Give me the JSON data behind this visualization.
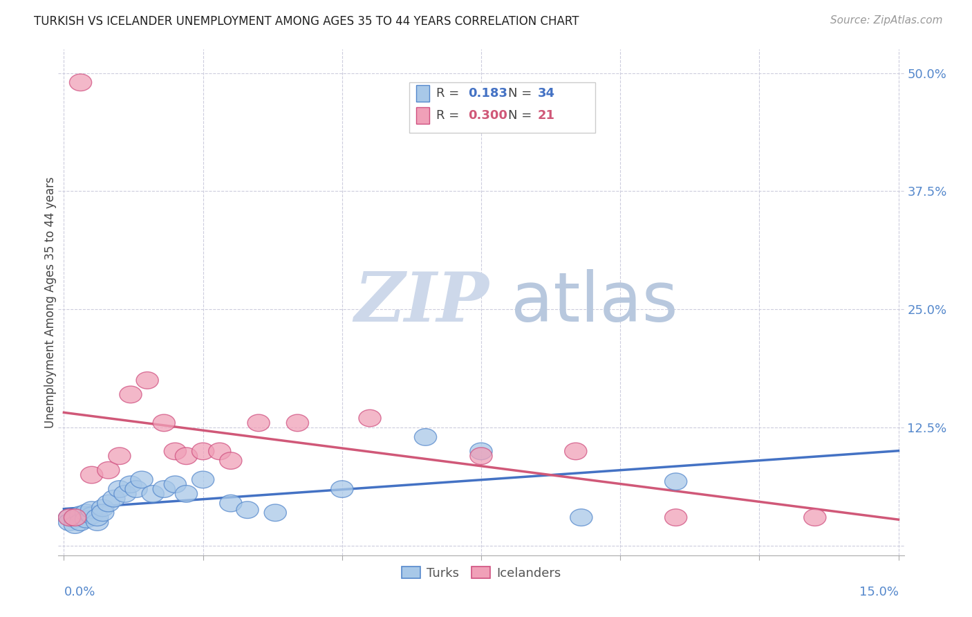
{
  "title": "TURKISH VS ICELANDER UNEMPLOYMENT AMONG AGES 35 TO 44 YEARS CORRELATION CHART",
  "source": "Source: ZipAtlas.com",
  "ylabel": "Unemployment Among Ages 35 to 44 years",
  "xlim": [
    0.0,
    0.15
  ],
  "ylim": [
    0.0,
    0.5
  ],
  "ytick_vals": [
    0.0,
    0.125,
    0.25,
    0.375,
    0.5
  ],
  "ytick_labels": [
    "",
    "12.5%",
    "25.0%",
    "37.5%",
    "50.0%"
  ],
  "xtick_vals": [
    0.0,
    0.025,
    0.05,
    0.075,
    0.1,
    0.125,
    0.15
  ],
  "turks_R": "0.183",
  "turks_N": "34",
  "icelanders_R": "0.300",
  "icelanders_N": "21",
  "turks_color": "#a8c8e8",
  "icelanders_color": "#f0a0b8",
  "turks_edge_color": "#5588cc",
  "icelanders_edge_color": "#d05080",
  "turks_line_color": "#4472c4",
  "icelanders_line_color": "#d05878",
  "watermark_zip_color": "#c8d8ee",
  "watermark_atlas_color": "#b8c8de",
  "turks_x": [
    0.001,
    0.001,
    0.002,
    0.002,
    0.003,
    0.003,
    0.004,
    0.004,
    0.005,
    0.005,
    0.006,
    0.006,
    0.007,
    0.007,
    0.008,
    0.009,
    0.01,
    0.011,
    0.012,
    0.013,
    0.014,
    0.016,
    0.018,
    0.02,
    0.022,
    0.025,
    0.03,
    0.033,
    0.038,
    0.05,
    0.065,
    0.075,
    0.093,
    0.11
  ],
  "turks_y": [
    0.03,
    0.025,
    0.028,
    0.022,
    0.033,
    0.025,
    0.035,
    0.028,
    0.032,
    0.038,
    0.025,
    0.03,
    0.04,
    0.035,
    0.045,
    0.05,
    0.06,
    0.055,
    0.065,
    0.06,
    0.07,
    0.055,
    0.06,
    0.065,
    0.055,
    0.07,
    0.045,
    0.038,
    0.035,
    0.06,
    0.115,
    0.1,
    0.03,
    0.068
  ],
  "icelanders_x": [
    0.001,
    0.002,
    0.003,
    0.005,
    0.008,
    0.01,
    0.012,
    0.015,
    0.018,
    0.02,
    0.022,
    0.025,
    0.028,
    0.03,
    0.035,
    0.042,
    0.055,
    0.075,
    0.092,
    0.11,
    0.135
  ],
  "icelanders_y": [
    0.03,
    0.03,
    0.49,
    0.075,
    0.08,
    0.095,
    0.16,
    0.175,
    0.13,
    0.1,
    0.095,
    0.1,
    0.1,
    0.09,
    0.13,
    0.13,
    0.135,
    0.095,
    0.1,
    0.03,
    0.03
  ]
}
